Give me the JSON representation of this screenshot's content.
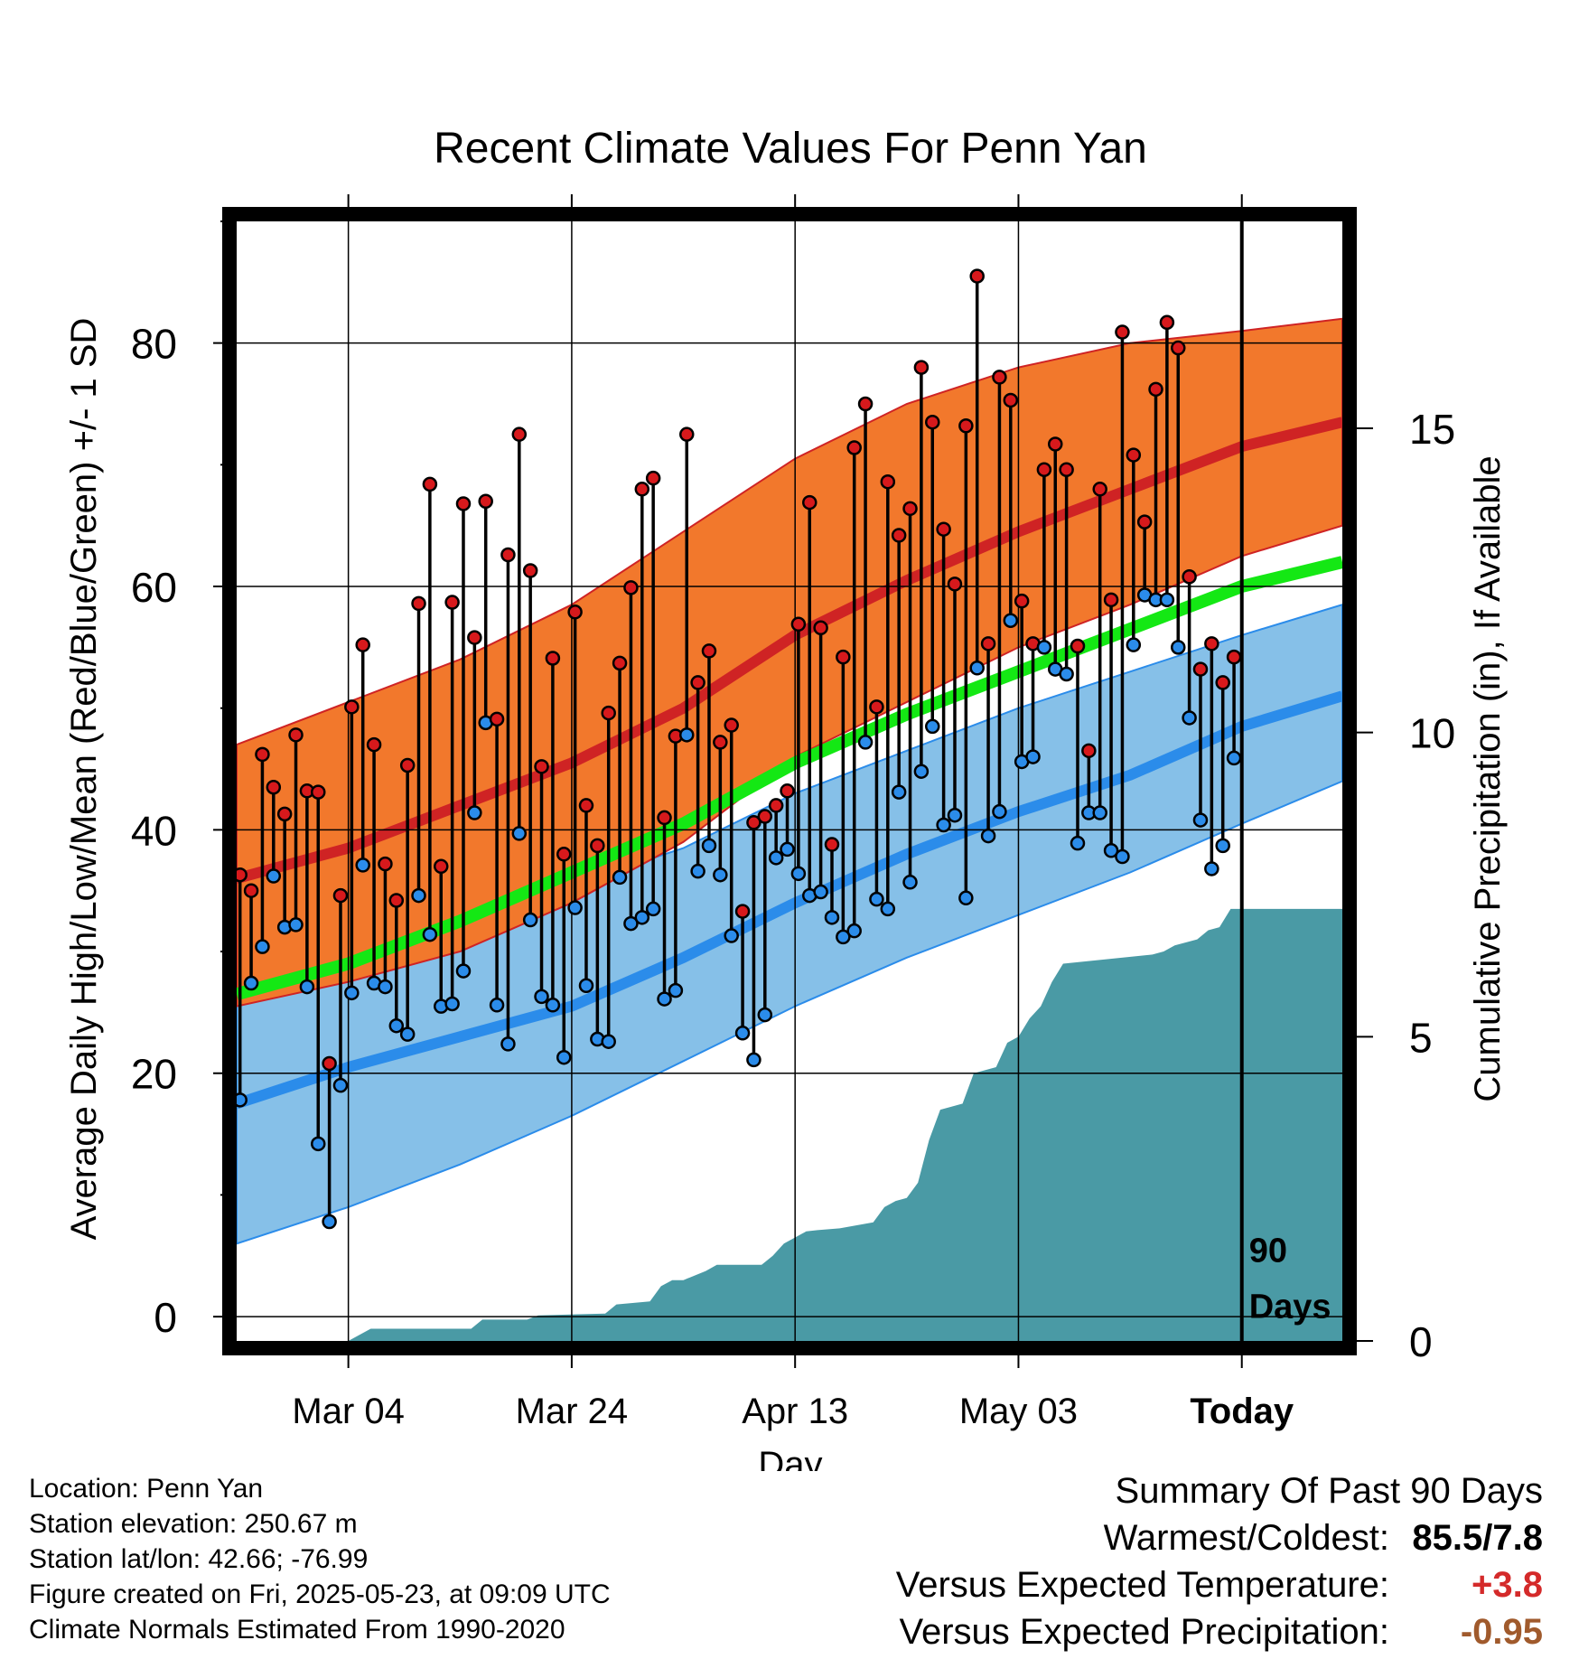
{
  "chart_data": {
    "type": "line",
    "title": "Recent Climate Values For Penn Yan",
    "xlabel": "Day",
    "ylabel": "Average Daily High/Low/Mean (Red/Blue/Green) +/- 1 SD",
    "y2label": "Cumulative Precipitation (in), If Available",
    "ylim": [
      -2,
      90
    ],
    "y_ticks": [
      0,
      20,
      40,
      60,
      80
    ],
    "y2lim": [
      0,
      18.4
    ],
    "y2_ticks": [
      0,
      5,
      10,
      15
    ],
    "x_start": "2025-02-22",
    "x_ticks": [
      {
        "date": "2025-03-04",
        "label": "Mar 04"
      },
      {
        "date": "2025-03-24",
        "label": "Mar 24"
      },
      {
        "date": "2025-04-13",
        "label": "Apr 13"
      },
      {
        "date": "2025-05-03",
        "label": "May 03"
      },
      {
        "date": "2025-05-23",
        "label": "Today"
      }
    ],
    "x_end": "2025-06-01",
    "today": "2025-05-23",
    "today_label": [
      "90",
      "Days"
    ],
    "grid": true,
    "normals": {
      "dates": [
        "2025-02-22",
        "2025-03-04",
        "2025-03-14",
        "2025-03-24",
        "2025-04-03",
        "2025-04-13",
        "2025-04-23",
        "2025-05-03",
        "2025-05-13",
        "2025-05-23",
        "2025-06-01"
      ],
      "high_mean": [
        36,
        38.5,
        42,
        45.5,
        50,
        56,
        60.5,
        64.5,
        68,
        71.5,
        73.5
      ],
      "high_sd_upper": [
        47,
        50.5,
        54,
        58.5,
        64.5,
        70.5,
        75,
        78,
        80,
        81,
        82
      ],
      "high_sd_lower": [
        25.5,
        27.5,
        30,
        34,
        39,
        46,
        50.5,
        55,
        58.5,
        62.5,
        65
      ],
      "low_mean": [
        17.5,
        20.5,
        23,
        25.5,
        29.5,
        34,
        38,
        41.5,
        44.5,
        48.5,
        51
      ],
      "low_sd_upper": [
        29,
        31.5,
        33,
        35.5,
        38.5,
        43,
        46.5,
        50,
        53,
        56,
        58.5
      ],
      "low_sd_lower": [
        6,
        9,
        12.5,
        16.5,
        21,
        25.5,
        29.5,
        33,
        36.5,
        40.5,
        44
      ],
      "avg_mean": [
        26.5,
        29,
        32.5,
        36.5,
        40.5,
        45.5,
        49.5,
        53,
        56.5,
        60,
        62
      ]
    },
    "series": [
      {
        "name": "High",
        "color": "#d7191c",
        "values": [
          36.3,
          35,
          46.2,
          43.5,
          41.3,
          47.8,
          43.2,
          43.1,
          20.8,
          34.6,
          50.1,
          55.2,
          47,
          37.2,
          34.2,
          45.3,
          58.6,
          68.4,
          37,
          58.7,
          66.8,
          55.8,
          67,
          49.1,
          62.6,
          72.5,
          61.3,
          45.2,
          54.1,
          38,
          57.9,
          42,
          38.7,
          49.6,
          53.7,
          59.9,
          68,
          68.9,
          41,
          47.7,
          72.5,
          52.1,
          54.7,
          47.2,
          48.6,
          33.3,
          40.6,
          41.1,
          42,
          43.2,
          56.9,
          66.9,
          56.6,
          38.8,
          54.2,
          71.4,
          75,
          50.1,
          68.6,
          64.2,
          66.4,
          78,
          73.5,
          64.7,
          60.2,
          73.2,
          85.5,
          55.3,
          77.2,
          75.3,
          58.8,
          55.3,
          69.6,
          71.7,
          69.6,
          55.1,
          46.5,
          68,
          58.9,
          80.9,
          70.8,
          65.3,
          76.2,
          81.7,
          79.6,
          60.8,
          53.2,
          55.3,
          52.1,
          54.2
        ]
      },
      {
        "name": "Low",
        "color": "#2b8cea",
        "values": [
          17.8,
          27.4,
          30.4,
          36.2,
          32,
          32.2,
          27.1,
          14.2,
          7.8,
          19,
          26.6,
          37.1,
          27.4,
          27.1,
          23.9,
          23.2,
          34.6,
          31.4,
          25.5,
          25.7,
          28.4,
          41.4,
          48.8,
          25.6,
          22.4,
          39.7,
          32.6,
          26.3,
          25.6,
          21.3,
          33.6,
          27.2,
          22.8,
          22.6,
          36.1,
          32.3,
          32.8,
          33.5,
          26.1,
          26.8,
          47.8,
          36.6,
          38.7,
          36.3,
          31.3,
          23.3,
          21.1,
          24.8,
          37.7,
          38.4,
          36.4,
          34.6,
          34.9,
          32.8,
          31.2,
          31.7,
          47.2,
          34.3,
          33.5,
          43.1,
          35.7,
          44.8,
          48.5,
          40.4,
          41.2,
          34.4,
          53.3,
          39.5,
          41.5,
          57.2,
          45.6,
          46,
          55,
          53.2,
          52.8,
          38.9,
          41.4,
          41.4,
          38.3,
          37.8,
          55.2,
          59.3,
          58.9,
          58.9,
          55,
          49.2,
          40.8,
          36.8,
          38.7,
          45.9
        ]
      }
    ],
    "precip_cumulative": {
      "dates": [
        "2025-02-22",
        "2025-03-04",
        "2025-03-05",
        "2025-03-06",
        "2025-03-15",
        "2025-03-16",
        "2025-03-20",
        "2025-03-21",
        "2025-03-27",
        "2025-03-28",
        "2025-03-31",
        "2025-04-01",
        "2025-04-02",
        "2025-04-03",
        "2025-04-05",
        "2025-04-06",
        "2025-04-10",
        "2025-04-11",
        "2025-04-12",
        "2025-04-13",
        "2025-04-14",
        "2025-04-15",
        "2025-04-17",
        "2025-04-20",
        "2025-04-21",
        "2025-04-22",
        "2025-04-23",
        "2025-04-24",
        "2025-04-25",
        "2025-04-26",
        "2025-04-27",
        "2025-04-28",
        "2025-04-29",
        "2025-04-30",
        "2025-05-01",
        "2025-05-02",
        "2025-05-03",
        "2025-05-04",
        "2025-05-05",
        "2025-05-06",
        "2025-05-07",
        "2025-05-15",
        "2025-05-16",
        "2025-05-17",
        "2025-05-19",
        "2025-05-20",
        "2025-05-21",
        "2025-05-22",
        "2025-06-01"
      ],
      "values": [
        0,
        0,
        0.1,
        0.2,
        0.2,
        0.35,
        0.35,
        0.42,
        0.45,
        0.6,
        0.65,
        0.9,
        1.0,
        1.0,
        1.15,
        1.25,
        1.25,
        1.4,
        1.6,
        1.7,
        1.8,
        1.82,
        1.85,
        1.95,
        2.2,
        2.3,
        2.35,
        2.6,
        3.3,
        3.8,
        3.85,
        3.9,
        4.4,
        4.45,
        4.5,
        4.9,
        5.0,
        5.3,
        5.5,
        5.9,
        6.2,
        6.35,
        6.4,
        6.5,
        6.6,
        6.75,
        6.8,
        7.1,
        7.1
      ]
    }
  },
  "colors": {
    "high_band": "#f2782c",
    "high_line": "#cf2324",
    "low_band": "#86c0e8",
    "low_line": "#2b8cea",
    "avg_line": "#14e814",
    "precip_fill": "#4a9aa5"
  },
  "station_info": {
    "location": "Location: Penn Yan",
    "elevation": "Station elevation: 250.67 m",
    "latlon": "Station lat/lon: 42.66; -76.99",
    "created": "Figure created on Fri, 2025-05-23, at 09:09 UTC",
    "normals": "Climate Normals Estimated From 1990-2020"
  },
  "summary": {
    "title": "Summary Of Past 90 Days",
    "rows": [
      {
        "label": "Warmest/Coldest:",
        "value": "85.5/7.8",
        "color": "#000000"
      },
      {
        "label": "Versus Expected Temperature:",
        "value": "+3.8",
        "color": "#d42a2a"
      },
      {
        "label": "Versus Expected Precipitation:",
        "value": "-0.95",
        "color": "#a05a2c"
      }
    ]
  }
}
